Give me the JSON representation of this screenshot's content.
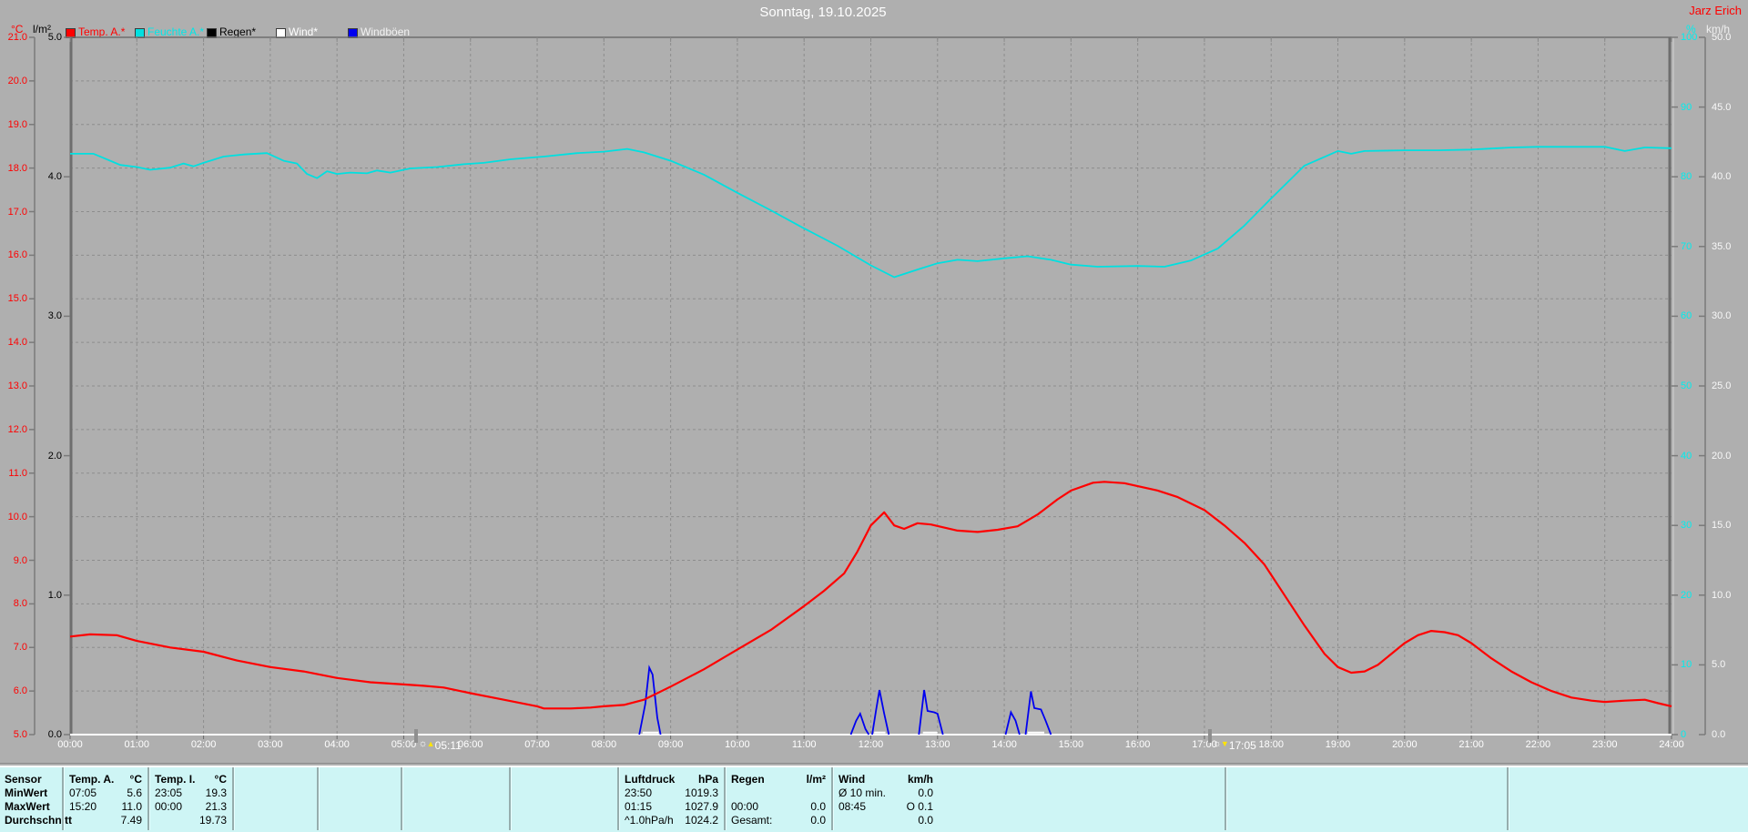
{
  "window": {
    "title": "Sonntag, 19.10.2025",
    "station_name": "Jarz Erich"
  },
  "legend": {
    "items": [
      {
        "label": "Temp. A.*",
        "color": "#ff0000",
        "text_color": "#ff0000"
      },
      {
        "label": "Feuchte A.*",
        "color": "#00e0e0",
        "text_color": "#00e8e8"
      },
      {
        "label": "Regen*",
        "color": "#000000",
        "text_color": "#000000"
      },
      {
        "label": "Wind*",
        "color": "#ffffff",
        "text_color": "#ffffff"
      },
      {
        "label": "Windböen",
        "color": "#0000f0",
        "text_color": "#f2f2f2"
      }
    ]
  },
  "axes": {
    "left_temp": {
      "unit": "°C",
      "min": 5,
      "max": 21,
      "step": 1,
      "color": "#ff0000"
    },
    "left_rain": {
      "unit": "l/m²",
      "min": 0,
      "max": 5,
      "step": 1,
      "color": "#000000"
    },
    "right_humidity": {
      "unit": "%",
      "min": 0,
      "max": 100,
      "step": 10,
      "color": "#00eeee"
    },
    "right_wind": {
      "unit": "km/h",
      "min": 0,
      "max": 50,
      "step": 5,
      "color": "#f8f8f8"
    },
    "x": {
      "start_hour": 0,
      "end_hour": 24,
      "label_suffix": ":00"
    }
  },
  "sun_markers": [
    {
      "type": "sunrise",
      "time": "05:11",
      "hour": 5.18,
      "arrow": "▲",
      "icon": "☼"
    },
    {
      "type": "sunset",
      "time": "17:05",
      "hour": 17.08,
      "arrow": "▼",
      "icon": "☼"
    }
  ],
  "chart_data": {
    "type": "line",
    "title": "Sonntag, 19.10.2025",
    "x_range_hours": [
      0,
      24
    ],
    "grid": "dashed hourly vertical, 1°C horizontal",
    "legend_position": "top",
    "series": [
      {
        "name": "Temp. A.",
        "unit": "°C",
        "axis": "left_temp",
        "color": "#ff0000",
        "width": 2.2,
        "points": [
          [
            0,
            7.25
          ],
          [
            0.3,
            7.3
          ],
          [
            0.7,
            7.28
          ],
          [
            1,
            7.15
          ],
          [
            1.5,
            7.0
          ],
          [
            2,
            6.9
          ],
          [
            2.5,
            6.7
          ],
          [
            3,
            6.55
          ],
          [
            3.5,
            6.45
          ],
          [
            4,
            6.3
          ],
          [
            4.5,
            6.2
          ],
          [
            5,
            6.15
          ],
          [
            5.3,
            6.12
          ],
          [
            5.6,
            6.08
          ],
          [
            6,
            5.95
          ],
          [
            6.5,
            5.8
          ],
          [
            7,
            5.65
          ],
          [
            7.1,
            5.6
          ],
          [
            7.5,
            5.6
          ],
          [
            7.8,
            5.62
          ],
          [
            8,
            5.65
          ],
          [
            8.3,
            5.68
          ],
          [
            8.6,
            5.8
          ],
          [
            9,
            6.1
          ],
          [
            9.5,
            6.5
          ],
          [
            10,
            6.95
          ],
          [
            10.5,
            7.4
          ],
          [
            11,
            7.95
          ],
          [
            11.3,
            8.3
          ],
          [
            11.6,
            8.7
          ],
          [
            11.8,
            9.2
          ],
          [
            12,
            9.8
          ],
          [
            12.2,
            10.1
          ],
          [
            12.35,
            9.8
          ],
          [
            12.5,
            9.72
          ],
          [
            12.7,
            9.85
          ],
          [
            12.9,
            9.82
          ],
          [
            13.1,
            9.75
          ],
          [
            13.3,
            9.68
          ],
          [
            13.6,
            9.65
          ],
          [
            13.9,
            9.7
          ],
          [
            14.2,
            9.78
          ],
          [
            14.5,
            10.05
          ],
          [
            14.8,
            10.4
          ],
          [
            15,
            10.6
          ],
          [
            15.33,
            10.78
          ],
          [
            15.5,
            10.8
          ],
          [
            15.8,
            10.77
          ],
          [
            16,
            10.7
          ],
          [
            16.3,
            10.6
          ],
          [
            16.6,
            10.45
          ],
          [
            17,
            10.15
          ],
          [
            17.3,
            9.8
          ],
          [
            17.6,
            9.4
          ],
          [
            17.9,
            8.9
          ],
          [
            18.2,
            8.2
          ],
          [
            18.5,
            7.5
          ],
          [
            18.8,
            6.85
          ],
          [
            19,
            6.55
          ],
          [
            19.2,
            6.42
          ],
          [
            19.4,
            6.45
          ],
          [
            19.6,
            6.6
          ],
          [
            19.8,
            6.85
          ],
          [
            20,
            7.1
          ],
          [
            20.2,
            7.28
          ],
          [
            20.4,
            7.38
          ],
          [
            20.6,
            7.35
          ],
          [
            20.8,
            7.28
          ],
          [
            21,
            7.1
          ],
          [
            21.3,
            6.75
          ],
          [
            21.6,
            6.45
          ],
          [
            21.9,
            6.2
          ],
          [
            22.2,
            6.0
          ],
          [
            22.5,
            5.85
          ],
          [
            22.8,
            5.78
          ],
          [
            23,
            5.75
          ],
          [
            23.3,
            5.78
          ],
          [
            23.6,
            5.8
          ],
          [
            23.8,
            5.72
          ],
          [
            24,
            5.65
          ]
        ]
      },
      {
        "name": "Feuchte A.",
        "unit": "%",
        "axis": "right_humidity",
        "color": "#00e0e0",
        "width": 1.8,
        "points": [
          [
            0,
            83.3
          ],
          [
            0.35,
            83.3
          ],
          [
            0.75,
            81.7
          ],
          [
            1,
            81.4
          ],
          [
            1.2,
            81.0
          ],
          [
            1.5,
            81.3
          ],
          [
            1.7,
            81.9
          ],
          [
            1.85,
            81.5
          ],
          [
            2,
            82.0
          ],
          [
            2.3,
            82.9
          ],
          [
            2.6,
            83.2
          ],
          [
            2.95,
            83.4
          ],
          [
            3.2,
            82.3
          ],
          [
            3.4,
            81.9
          ],
          [
            3.55,
            80.4
          ],
          [
            3.7,
            79.8
          ],
          [
            3.85,
            80.8
          ],
          [
            4,
            80.4
          ],
          [
            4.2,
            80.6
          ],
          [
            4.45,
            80.5
          ],
          [
            4.6,
            80.9
          ],
          [
            4.8,
            80.6
          ],
          [
            5.1,
            81.2
          ],
          [
            5.5,
            81.4
          ],
          [
            5.9,
            81.8
          ],
          [
            6.2,
            82.0
          ],
          [
            6.6,
            82.5
          ],
          [
            7.1,
            82.9
          ],
          [
            7.6,
            83.4
          ],
          [
            8,
            83.6
          ],
          [
            8.35,
            84.0
          ],
          [
            8.6,
            83.5
          ],
          [
            9,
            82.3
          ],
          [
            9.5,
            80.3
          ],
          [
            10,
            77.7
          ],
          [
            10.5,
            75.2
          ],
          [
            11,
            72.6
          ],
          [
            11.5,
            70.1
          ],
          [
            12,
            67.3
          ],
          [
            12.35,
            65.6
          ],
          [
            12.7,
            66.7
          ],
          [
            13,
            67.6
          ],
          [
            13.3,
            68.1
          ],
          [
            13.6,
            67.9
          ],
          [
            14,
            68.3
          ],
          [
            14.35,
            68.6
          ],
          [
            14.7,
            68.1
          ],
          [
            15,
            67.4
          ],
          [
            15.4,
            67.1
          ],
          [
            16,
            67.2
          ],
          [
            16.4,
            67.1
          ],
          [
            16.8,
            68.0
          ],
          [
            17.2,
            69.7
          ],
          [
            17.6,
            73.0
          ],
          [
            18,
            76.9
          ],
          [
            18.5,
            81.6
          ],
          [
            19,
            83.7
          ],
          [
            19.2,
            83.3
          ],
          [
            19.4,
            83.7
          ],
          [
            20,
            83.8
          ],
          [
            20.5,
            83.8
          ],
          [
            21,
            83.9
          ],
          [
            21.6,
            84.2
          ],
          [
            22,
            84.3
          ],
          [
            22.5,
            84.3
          ],
          [
            23,
            84.3
          ],
          [
            23.3,
            83.7
          ],
          [
            23.6,
            84.2
          ],
          [
            24,
            84.1
          ]
        ]
      },
      {
        "name": "Regen",
        "unit": "l/m²",
        "axis": "left_rain",
        "color": "#000000",
        "width": 1.6,
        "points": [
          [
            0,
            0
          ],
          [
            24,
            0
          ]
        ]
      },
      {
        "name": "Wind",
        "unit": "km/h",
        "axis": "right_wind",
        "color": "#ffffff",
        "width": 2,
        "points": [
          [
            0,
            0
          ],
          [
            24,
            0
          ]
        ],
        "blips": [
          [
            8.58,
            8.82
          ],
          [
            12.05,
            12.22
          ],
          [
            12.78,
            13.0
          ],
          [
            14.35,
            14.6
          ]
        ],
        "blip_value": 0.15
      },
      {
        "name": "Windböen",
        "unit": "km/h",
        "axis": "right_wind",
        "color": "#0000f0",
        "width": 1.8,
        "spikes": [
          [
            [
              8.53,
              0
            ],
            [
              8.62,
              2.2
            ],
            [
              8.68,
              4.8
            ],
            [
              8.73,
              4.3
            ],
            [
              8.8,
              1.2
            ],
            [
              8.85,
              0
            ]
          ],
          [
            [
              11.7,
              0
            ],
            [
              11.78,
              1.0
            ],
            [
              11.84,
              1.5
            ],
            [
              11.92,
              0.4
            ],
            [
              11.97,
              0
            ]
          ],
          [
            [
              12.02,
              0
            ],
            [
              12.08,
              1.8
            ],
            [
              12.13,
              3.2
            ],
            [
              12.2,
              1.5
            ],
            [
              12.27,
              0
            ]
          ],
          [
            [
              12.72,
              0
            ],
            [
              12.8,
              3.2
            ],
            [
              12.85,
              1.7
            ],
            [
              12.95,
              1.6
            ],
            [
              13.0,
              1.5
            ],
            [
              13.08,
              0
            ]
          ],
          [
            [
              14.02,
              0
            ],
            [
              14.1,
              1.6
            ],
            [
              14.17,
              1.0
            ],
            [
              14.23,
              0
            ]
          ],
          [
            [
              14.32,
              0
            ],
            [
              14.4,
              3.1
            ],
            [
              14.45,
              1.9
            ],
            [
              14.55,
              1.8
            ],
            [
              14.62,
              1.0
            ],
            [
              14.7,
              0
            ]
          ]
        ]
      }
    ]
  },
  "table": {
    "row_labels": [
      "Sensor",
      "MinWert",
      "MaxWert",
      "Durchschnitt"
    ],
    "columns": [
      {
        "id": "temp-a",
        "header": "Temp. A.",
        "unit": "°C",
        "rows": [
          [
            "07:05",
            "5.6"
          ],
          [
            "15:20",
            "11.0"
          ],
          [
            "",
            "7.49"
          ]
        ]
      },
      {
        "id": "temp-i",
        "header": "Temp. I.",
        "unit": "°C",
        "rows": [
          [
            "23:05",
            "19.3"
          ],
          [
            "00:00",
            "21.3"
          ],
          [
            "",
            "19.73"
          ]
        ]
      },
      {
        "id": "empty-1",
        "header": "",
        "unit": "",
        "rows": [
          [
            "",
            ""
          ],
          [
            "",
            ""
          ],
          [
            "",
            ""
          ]
        ]
      },
      {
        "id": "empty-2",
        "header": "",
        "unit": "",
        "rows": [
          [
            "",
            ""
          ],
          [
            "",
            ""
          ],
          [
            "",
            ""
          ]
        ]
      },
      {
        "id": "empty-3",
        "header": "",
        "unit": "",
        "rows": [
          [
            "",
            ""
          ],
          [
            "",
            ""
          ],
          [
            "",
            ""
          ]
        ]
      },
      {
        "id": "empty-4",
        "header": "",
        "unit": "",
        "rows": [
          [
            "",
            ""
          ],
          [
            "",
            ""
          ],
          [
            "",
            ""
          ]
        ]
      },
      {
        "id": "luftdruck",
        "header": "Luftdruck",
        "unit": "hPa",
        "rows": [
          [
            "23:50",
            "1019.3"
          ],
          [
            "01:15",
            "1027.9"
          ],
          [
            "^1.0hPa/h",
            "1024.2"
          ]
        ]
      },
      {
        "id": "regen",
        "header": "Regen",
        "unit": "l/m²",
        "rows": [
          [
            "",
            ""
          ],
          [
            "00:00",
            "0.0"
          ],
          [
            "Gesamt:",
            "0.0"
          ]
        ]
      },
      {
        "id": "wind",
        "header": "Wind",
        "unit": "km/h",
        "rows": [
          [
            "Ø 10 min.",
            "0.0"
          ],
          [
            "08:45",
            "O 0.1"
          ],
          [
            "",
            "0.0"
          ]
        ]
      },
      {
        "id": "empty-5",
        "header": "",
        "unit": "",
        "rows": [
          [
            "",
            ""
          ],
          [
            "",
            ""
          ],
          [
            "",
            ""
          ]
        ]
      },
      {
        "id": "empty-6",
        "header": "",
        "unit": "",
        "rows": [
          [
            "",
            ""
          ],
          [
            "",
            ""
          ],
          [
            "",
            ""
          ]
        ]
      }
    ]
  }
}
